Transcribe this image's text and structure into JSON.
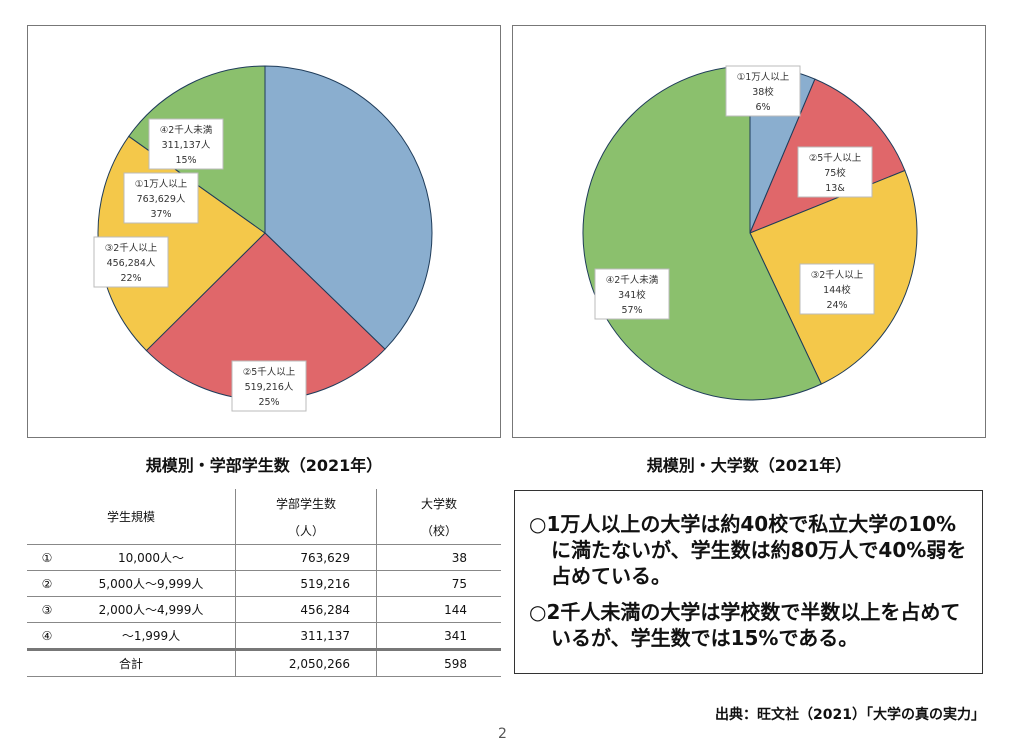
{
  "charts": [
    {
      "caption": "規模別・学部学生数（2021年）",
      "slices": [
        {
          "label1": "①1万人以上",
          "label2": "763,629人",
          "label3": "37%",
          "value": 763629,
          "color": "#8aaecf"
        },
        {
          "label1": "②5千人以上",
          "label2": "519,216人",
          "label3": "25%",
          "value": 519216,
          "color": "#e0676a"
        },
        {
          "label1": "③2千人以上",
          "label2": "456,284人",
          "label3": "22%",
          "value": 456284,
          "color": "#f4c84a"
        },
        {
          "label1": "④2千人未満",
          "label2": "311,137人",
          "label3": "15%",
          "value": 311137,
          "color": "#8bc06d"
        }
      ]
    },
    {
      "caption": "規模別・大学数（2021年）",
      "slices": [
        {
          "label1": "①1万人以上",
          "label2": "38校",
          "label3": "6%",
          "value": 38,
          "color": "#8aaecf"
        },
        {
          "label1": "②5千人以上",
          "label2": "75校",
          "label3": "13&",
          "value": 75,
          "color": "#e0676a"
        },
        {
          "label1": "③2千人以上",
          "label2": "144校",
          "label3": "24%",
          "value": 144,
          "color": "#f4c84a"
        },
        {
          "label1": "④2千人未満",
          "label2": "341校",
          "label3": "57%",
          "value": 341,
          "color": "#8bc06d"
        }
      ]
    }
  ],
  "chart_data": [
    {
      "type": "pie",
      "title": "規模別・学部学生数（2021年）",
      "categories": [
        "①1万人以上",
        "②5千人以上",
        "③2千人以上",
        "④2千人未満"
      ],
      "values": [
        763629,
        519216,
        456284,
        311137
      ],
      "percent_labels": [
        "37%",
        "25%",
        "22%",
        "15%"
      ]
    },
    {
      "type": "pie",
      "title": "規模別・大学数（2021年）",
      "categories": [
        "①1万人以上",
        "②5千人以上",
        "③2千人以上",
        "④2千人未満"
      ],
      "values": [
        38,
        75,
        144,
        341
      ],
      "percent_labels": [
        "6%",
        "13&",
        "24%",
        "57%"
      ]
    }
  ],
  "table": {
    "headers": {
      "scale": "学生規模",
      "students_1": "学部学生数",
      "students_2": "（人）",
      "univs_1": "大学数",
      "univs_2": "（校）"
    },
    "rows": [
      {
        "mark": "①",
        "range": "10,000人～",
        "students": "763,629",
        "univs": "38"
      },
      {
        "mark": "②",
        "range": "5,000人～9,999人",
        "students": "519,216",
        "univs": "75"
      },
      {
        "mark": "③",
        "range": "2,000人～4,999人",
        "students": "456,284",
        "univs": "144"
      },
      {
        "mark": "④",
        "range": "～1,999人",
        "students": "311,137",
        "univs": "341"
      }
    ],
    "total": {
      "label": "合計",
      "students": "2,050,266",
      "univs": "598"
    }
  },
  "notes": [
    "○1万人以上の大学は約40校で私立大学の10%に満たないが、学生数は約80万人で40%弱を占めている。",
    "○2千人未満の大学は学校数で半数以上を占めているが、学生数では15%である。"
  ],
  "source": "出典：旺文社（2021）「大学の真の実力」",
  "page_number": "2"
}
